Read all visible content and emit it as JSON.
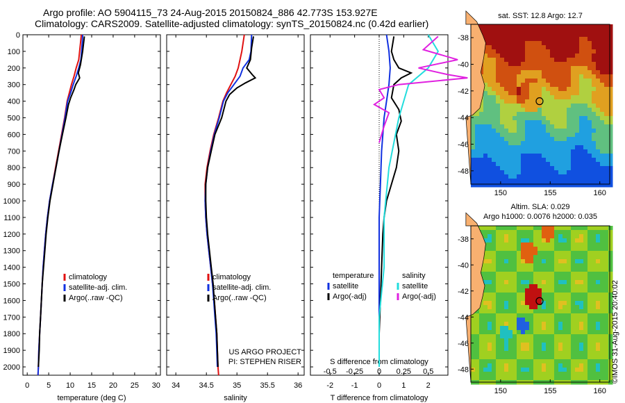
{
  "header": {
    "line1": "Argo profile: AO 5904115_73 24-Aug-2015 20150824_886 42.773S 153.927E",
    "line2": "Climatology: CARS2009. Satellite-adjusted climatology: synTS_20150824.nc (0.42d earlier)"
  },
  "colors": {
    "clim": "#e01010",
    "sat": "#1030e0",
    "argo": "#000000",
    "sal_sat": "#22dddd",
    "sal_argo": "#e020e0"
  },
  "chart_data": [
    {
      "type": "line",
      "id": "temperature",
      "xlabel": "temperature (deg C)",
      "xlim": [
        -1,
        31
      ],
      "ylim": [
        2050,
        0
      ],
      "xticks": [
        0,
        5,
        10,
        15,
        20,
        25,
        30
      ],
      "yticks": [
        0,
        100,
        200,
        300,
        400,
        500,
        600,
        700,
        800,
        900,
        1000,
        1100,
        1200,
        1300,
        1400,
        1500,
        1600,
        1700,
        1800,
        1900,
        2000
      ],
      "legend": [
        "climatology",
        "satellite-adj. clim.",
        "Argo(..raw -QC)"
      ],
      "series": [
        {
          "name": "climatology",
          "color": "clim",
          "points": [
            [
              12.6,
              0
            ],
            [
              12.4,
              50
            ],
            [
              12.0,
              150
            ],
            [
              11.4,
              200
            ],
            [
              10.9,
              250
            ],
            [
              10.3,
              300
            ],
            [
              9.8,
              350
            ],
            [
              9.3,
              400
            ],
            [
              8.7,
              500
            ],
            [
              8.0,
              600
            ],
            [
              7.3,
              700
            ],
            [
              6.6,
              800
            ],
            [
              5.9,
              900
            ],
            [
              5.2,
              1000
            ],
            [
              4.7,
              1100
            ],
            [
              4.3,
              1200
            ],
            [
              4.0,
              1300
            ],
            [
              3.7,
              1400
            ],
            [
              3.5,
              1500
            ],
            [
              3.3,
              1600
            ],
            [
              3.1,
              1700
            ],
            [
              2.9,
              1800
            ],
            [
              2.7,
              1900
            ],
            [
              2.6,
              2000
            ],
            [
              2.5,
              2050
            ]
          ]
        },
        {
          "name": "satellite",
          "color": "sat",
          "points": [
            [
              12.9,
              0
            ],
            [
              12.8,
              50
            ],
            [
              12.5,
              150
            ],
            [
              12.0,
              200
            ],
            [
              11.4,
              250
            ],
            [
              10.7,
              300
            ],
            [
              10.1,
              350
            ],
            [
              9.4,
              400
            ],
            [
              8.8,
              500
            ],
            [
              8.1,
              600
            ],
            [
              7.4,
              700
            ],
            [
              6.7,
              800
            ],
            [
              5.9,
              900
            ],
            [
              5.2,
              1000
            ],
            [
              4.7,
              1100
            ],
            [
              4.3,
              1200
            ],
            [
              4.0,
              1300
            ],
            [
              3.7,
              1400
            ],
            [
              3.5,
              1500
            ],
            [
              3.3,
              1600
            ],
            [
              3.1,
              1700
            ],
            [
              2.9,
              1800
            ],
            [
              2.7,
              1900
            ],
            [
              2.6,
              2000
            ],
            [
              2.5,
              2050
            ]
          ]
        },
        {
          "name": "argo",
          "color": "argo",
          "points": [
            [
              13.3,
              10
            ],
            [
              12.9,
              100
            ],
            [
              12.4,
              180
            ],
            [
              11.9,
              230
            ],
            [
              12.2,
              260
            ],
            [
              11.3,
              300
            ],
            [
              10.9,
              330
            ],
            [
              10.1,
              380
            ],
            [
              9.6,
              420
            ],
            [
              9.0,
              500
            ],
            [
              8.2,
              600
            ],
            [
              7.4,
              700
            ],
            [
              6.7,
              800
            ],
            [
              6.0,
              900
            ],
            [
              5.3,
              1000
            ],
            [
              4.8,
              1100
            ],
            [
              4.4,
              1200
            ],
            [
              4.1,
              1300
            ],
            [
              3.8,
              1400
            ],
            [
              3.5,
              1500
            ],
            [
              3.3,
              1600
            ],
            [
              3.1,
              1700
            ],
            [
              2.9,
              1800
            ],
            [
              2.8,
              1900
            ],
            [
              2.6,
              2000
            ]
          ]
        }
      ]
    },
    {
      "type": "line",
      "id": "salinity",
      "xlabel": "salinity",
      "xlim": [
        33.85,
        36.1
      ],
      "ylim": [
        2050,
        0
      ],
      "xticks": [
        34,
        34.5,
        35,
        35.5,
        36
      ],
      "legend": [
        "climatology",
        "satellite-adj. clim.",
        "Argo(..raw -QC)"
      ],
      "credit": [
        "US ARGO PROJECT",
        "PI: STEPHEN RISER"
      ],
      "series": [
        {
          "name": "climatology",
          "color": "clim",
          "points": [
            [
              35.12,
              0
            ],
            [
              35.1,
              50
            ],
            [
              35.08,
              100
            ],
            [
              35.05,
              150
            ],
            [
              35.02,
              200
            ],
            [
              34.97,
              250
            ],
            [
              34.9,
              300
            ],
            [
              34.83,
              350
            ],
            [
              34.77,
              400
            ],
            [
              34.7,
              500
            ],
            [
              34.62,
              600
            ],
            [
              34.56,
              700
            ],
            [
              34.51,
              800
            ],
            [
              34.48,
              900
            ],
            [
              34.48,
              1000
            ],
            [
              34.49,
              1100
            ],
            [
              34.51,
              1200
            ],
            [
              34.54,
              1300
            ],
            [
              34.57,
              1400
            ],
            [
              34.6,
              1500
            ],
            [
              34.63,
              1600
            ],
            [
              34.65,
              1700
            ],
            [
              34.67,
              1800
            ],
            [
              34.68,
              1900
            ],
            [
              34.69,
              2000
            ],
            [
              34.7,
              2050
            ]
          ]
        },
        {
          "name": "satellite",
          "color": "sat",
          "points": [
            [
              35.24,
              0
            ],
            [
              35.23,
              100
            ],
            [
              35.2,
              150
            ],
            [
              35.1,
              200
            ],
            [
              35.05,
              250
            ],
            [
              34.95,
              300
            ],
            [
              34.85,
              350
            ],
            [
              34.78,
              400
            ],
            [
              34.71,
              500
            ],
            [
              34.63,
              600
            ],
            [
              34.57,
              700
            ],
            [
              34.52,
              800
            ],
            [
              34.49,
              900
            ],
            [
              34.48,
              1000
            ],
            [
              34.49,
              1100
            ],
            [
              34.51,
              1200
            ],
            [
              34.54,
              1300
            ],
            [
              34.57,
              1400
            ],
            [
              34.6,
              1500
            ],
            [
              34.62,
              1600
            ],
            [
              34.64,
              1700
            ],
            [
              34.66,
              1800
            ],
            [
              34.67,
              1900
            ],
            [
              34.68,
              2000
            ]
          ]
        },
        {
          "name": "argo",
          "color": "argo",
          "points": [
            [
              35.27,
              10
            ],
            [
              35.24,
              80
            ],
            [
              35.22,
              150
            ],
            [
              35.16,
              200
            ],
            [
              35.25,
              240
            ],
            [
              35.3,
              260
            ],
            [
              35.14,
              290
            ],
            [
              35.0,
              320
            ],
            [
              34.88,
              360
            ],
            [
              34.82,
              400
            ],
            [
              34.75,
              500
            ],
            [
              34.64,
              600
            ],
            [
              34.58,
              700
            ],
            [
              34.52,
              800
            ],
            [
              34.49,
              900
            ],
            [
              34.49,
              1000
            ],
            [
              34.5,
              1100
            ],
            [
              34.52,
              1200
            ],
            [
              34.55,
              1300
            ],
            [
              34.58,
              1400
            ],
            [
              34.61,
              1500
            ],
            [
              34.63,
              1600
            ],
            [
              34.65,
              1700
            ],
            [
              34.67,
              1800
            ],
            [
              34.68,
              1900
            ],
            [
              34.69,
              2000
            ]
          ]
        }
      ]
    },
    {
      "type": "line",
      "id": "difference",
      "xlabel": "T difference from climatology",
      "xlabel_top": "S difference from climatology",
      "xlim": [
        -2.8,
        2.8
      ],
      "ylim": [
        2050,
        0
      ],
      "xticks": [
        -2,
        -1,
        0,
        1,
        2
      ],
      "xticks_labels": [
        "-2",
        "-1",
        "0",
        "1",
        "2"
      ],
      "sticks": [
        -0.5,
        -0.25,
        0,
        0.25,
        0.5
      ],
      "sticks_labels": [
        "-0.5",
        "-0.25",
        "0",
        "0.25",
        "0.5"
      ],
      "legend_t_title": "temperature",
      "legend_s_title": "salinity",
      "legend": [
        "satellite",
        "Argo(-adj)",
        "satellite",
        "Argo(-adj)"
      ],
      "series": [
        {
          "name": "T satellite",
          "color": "sat",
          "points": [
            [
              0.3,
              0
            ],
            [
              0.4,
              100
            ],
            [
              0.45,
              200
            ],
            [
              0.4,
              300
            ],
            [
              0.3,
              400
            ],
            [
              0.2,
              500
            ],
            [
              0.1,
              700
            ],
            [
              0.05,
              900
            ],
            [
              0.0,
              1100
            ],
            [
              0.0,
              1400
            ],
            [
              0.0,
              1700
            ],
            [
              0.0,
              2000
            ]
          ]
        },
        {
          "name": "T argo",
          "color": "argo",
          "points": [
            [
              0.6,
              10
            ],
            [
              0.5,
              100
            ],
            [
              0.6,
              150
            ],
            [
              0.8,
              200
            ],
            [
              1.3,
              230
            ],
            [
              0.9,
              260
            ],
            [
              0.6,
              300
            ],
            [
              0.5,
              380
            ],
            [
              0.8,
              450
            ],
            [
              0.9,
              520
            ],
            [
              0.7,
              600
            ],
            [
              0.8,
              700
            ],
            [
              0.7,
              800
            ],
            [
              0.5,
              900
            ],
            [
              0.3,
              1000
            ],
            [
              0.2,
              1100
            ],
            [
              0.15,
              1200
            ],
            [
              0.1,
              1400
            ],
            [
              0.05,
              1600
            ],
            [
              0.0,
              1800
            ],
            [
              0.0,
              2000
            ]
          ]
        },
        {
          "name": "S satellite",
          "color": "sal_sat",
          "points": [
            [
              0.5,
              0
            ],
            [
              0.6,
              100
            ],
            [
              0.5,
              200
            ],
            [
              0.3,
              300
            ],
            [
              0.2,
              500
            ],
            [
              0.1,
              800
            ],
            [
              0.05,
              1100
            ],
            [
              0.05,
              1400
            ],
            [
              0.0,
              1700
            ],
            [
              0.0,
              2000
            ]
          ]
        },
        {
          "name": "S argo",
          "color": "sal_argo",
          "points": [
            [
              0.6,
              10
            ],
            [
              0.45,
              90
            ],
            [
              0.8,
              150
            ],
            [
              0.4,
              200
            ],
            [
              0.7,
              240
            ],
            [
              0.9,
              260
            ],
            [
              0.2,
              300
            ],
            [
              0.0,
              330
            ],
            [
              0.05,
              380
            ],
            [
              -0.05,
              420
            ],
            [
              0.1,
              470
            ],
            [
              0.05,
              550
            ],
            [
              0.0,
              650
            ]
          ]
        }
      ]
    }
  ],
  "maps": {
    "sst": {
      "title": "sat. SST: 12.8 Argo: 12.7",
      "xticks": [
        150,
        155,
        160
      ],
      "yticks": [
        -38,
        -40,
        -42,
        -44,
        -46,
        -48
      ],
      "marker": [
        153.927,
        -42.773
      ]
    },
    "sla": {
      "title1": "Altim. SLA: 0.029",
      "title2": "Argo h1000: 0.0076 h2000: 0.035",
      "xticks": [
        150,
        155,
        160
      ],
      "yticks": [
        -38,
        -40,
        -42,
        -44,
        -46,
        -48
      ],
      "marker": [
        153.927,
        -42.773
      ]
    }
  },
  "footer": {
    "stamp": "©IMOS 31-Aug-2015 20:40:02"
  }
}
